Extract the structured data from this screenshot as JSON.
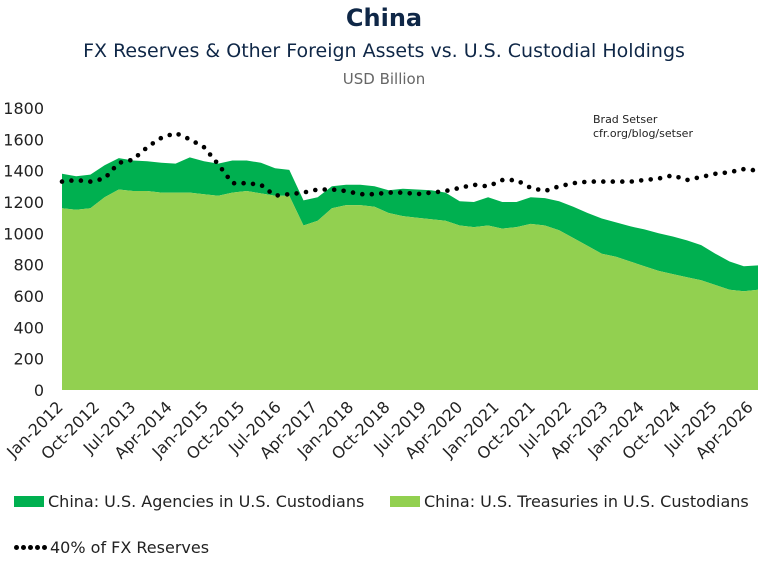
{
  "chart_data": {
    "type": "area",
    "title": "China",
    "subtitle": "FX Reserves & Other Foreign Assets vs. U.S. Custodial Holdings",
    "unit": "USD Billion",
    "annotation": [
      "Brad Setser",
      "cfr.org/blog/setser"
    ],
    "ylim": [
      0,
      1800
    ],
    "yticks": [
      "0",
      "200",
      "400",
      "600",
      "800",
      "1000",
      "1200",
      "1400",
      "1600",
      "1800"
    ],
    "x_tick_labels": [
      "Jan-2012",
      "Oct-2012",
      "Jul-2013",
      "Apr-2014",
      "Jan-2015",
      "Oct-2015",
      "Jul-2016",
      "Apr-2017",
      "Jan-2018",
      "Oct-2018",
      "Jul-2019",
      "Apr-2020",
      "Jan-2021",
      "Oct-2021",
      "Jul-2022",
      "Apr-2023",
      "Jan-2024",
      "Oct-2024",
      "Jul-2025",
      "Apr-2026"
    ],
    "series": [
      {
        "name": "China: U.S. Agencies in U.S. Custodians",
        "color": "#00b050",
        "values": [
          220,
          215,
          215,
          205,
          200,
          195,
          190,
          190,
          185,
          225,
          210,
          205,
          205,
          195,
          195,
          175,
          165,
          160,
          150,
          140,
          130,
          130,
          130,
          145,
          175,
          180,
          185,
          180,
          155,
          160,
          180,
          170,
          160,
          170,
          175,
          185,
          200,
          210,
          225,
          220,
          225,
          235,
          240,
          240,
          235,
          225,
          200,
          180,
          160,
          155
        ]
      },
      {
        "name": "China: U.S. Treasuries in U.S. Custodians",
        "color": "#92d050",
        "values": [
          1160,
          1150,
          1160,
          1230,
          1280,
          1270,
          1270,
          1260,
          1260,
          1260,
          1250,
          1240,
          1260,
          1270,
          1255,
          1240,
          1240,
          1050,
          1080,
          1160,
          1180,
          1180,
          1170,
          1130,
          1110,
          1100,
          1090,
          1080,
          1050,
          1040,
          1050,
          1030,
          1040,
          1060,
          1050,
          1020,
          970,
          920,
          870,
          850,
          820,
          790,
          760,
          740,
          720,
          700,
          670,
          640,
          630,
          640
        ]
      },
      {
        "name": "40% of FX Reserves",
        "color": "#000000",
        "values": [
          1330,
          1340,
          1330,
          1350,
          1450,
          1470,
          1550,
          1610,
          1640,
          1600,
          1550,
          1440,
          1320,
          1320,
          1310,
          1240,
          1250,
          1260,
          1280,
          1280,
          1270,
          1250,
          1250,
          1260,
          1260,
          1250,
          1260,
          1270,
          1290,
          1310,
          1300,
          1340,
          1340,
          1290,
          1270,
          1300,
          1320,
          1330,
          1330,
          1330,
          1330,
          1340,
          1350,
          1370,
          1340,
          1360,
          1380,
          1390,
          1410,
          1400
        ]
      }
    ]
  },
  "legend": {
    "agencies": "China: U.S. Agencies in U.S. Custodians",
    "treasuries": "China: U.S. Treasuries in U.S. Custodians",
    "reserves": "40% of FX Reserves"
  }
}
